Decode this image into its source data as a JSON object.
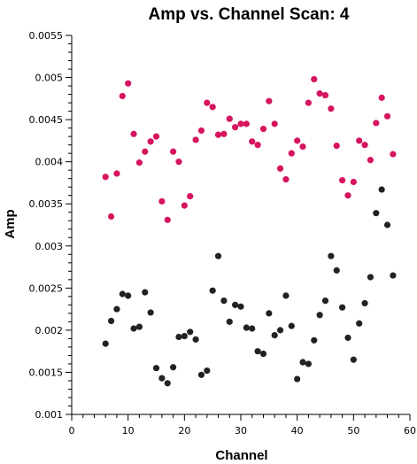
{
  "chart_data": {
    "type": "scatter",
    "title": "Amp vs. Channel Scan: 4",
    "xlabel": "Channel",
    "ylabel": "Amp",
    "xlim": [
      0,
      60
    ],
    "ylim": [
      0.001,
      0.0055
    ],
    "x_ticks": [
      "0",
      "10",
      "20",
      "30",
      "40",
      "50",
      "60"
    ],
    "y_ticks": [
      "0.001",
      "0.0015",
      "0.002",
      "0.0025",
      "0.003",
      "0.0035",
      "0.004",
      "0.0045",
      "0.005",
      "0.0055"
    ],
    "grid": false,
    "legend": "none",
    "series": [
      {
        "color": "#d6145f",
        "x": [
          6,
          7,
          8,
          9,
          10,
          11,
          12,
          13,
          14,
          15,
          16,
          17,
          18,
          19,
          20,
          21,
          22,
          23,
          24,
          25,
          26,
          27,
          28,
          29,
          30,
          31,
          32,
          33,
          34,
          35,
          36,
          37,
          38,
          39,
          40,
          41,
          42,
          43,
          44,
          45,
          46,
          47,
          48,
          49,
          50,
          51,
          52,
          53,
          54,
          55,
          56,
          57
        ],
        "y": [
          0.00382,
          0.00335,
          0.00386,
          0.00478,
          0.00493,
          0.00433,
          0.00399,
          0.00412,
          0.00424,
          0.0043,
          0.00353,
          0.00331,
          0.00412,
          0.004,
          0.00348,
          0.00359,
          0.00426,
          0.00437,
          0.0047,
          0.00465,
          0.00432,
          0.00433,
          0.00451,
          0.00441,
          0.00445,
          0.00445,
          0.00424,
          0.0042,
          0.00439,
          0.00472,
          0.00445,
          0.00392,
          0.00379,
          0.0041,
          0.00425,
          0.00418,
          0.0047,
          0.00498,
          0.00481,
          0.00479,
          0.00463,
          0.00419,
          0.00378,
          0.0036,
          0.00376,
          0.00425,
          0.0042,
          0.00402,
          0.00446,
          0.00476,
          0.00454,
          0.00409
        ]
      },
      {
        "color": "#222222",
        "x": [
          6,
          7,
          8,
          9,
          10,
          11,
          12,
          13,
          14,
          15,
          16,
          17,
          18,
          19,
          20,
          21,
          22,
          23,
          24,
          25,
          26,
          27,
          28,
          29,
          30,
          31,
          32,
          33,
          34,
          35,
          36,
          37,
          38,
          39,
          40,
          41,
          42,
          43,
          44,
          45,
          46,
          47,
          48,
          49,
          50,
          51,
          52,
          53,
          54,
          55,
          56,
          57
        ],
        "y": [
          0.00184,
          0.00211,
          0.00225,
          0.00243,
          0.00241,
          0.00202,
          0.00204,
          0.00245,
          0.00221,
          0.00155,
          0.00143,
          0.00137,
          0.00156,
          0.00192,
          0.00193,
          0.00198,
          0.00189,
          0.00147,
          0.00152,
          0.00247,
          0.00288,
          0.00235,
          0.0021,
          0.0023,
          0.00228,
          0.00203,
          0.00202,
          0.00175,
          0.00172,
          0.0022,
          0.00194,
          0.002,
          0.00241,
          0.00205,
          0.00142,
          0.00162,
          0.0016,
          0.00188,
          0.00218,
          0.00235,
          0.00288,
          0.00271,
          0.00227,
          0.00191,
          0.00165,
          0.00208,
          0.00232,
          0.00263,
          0.00339,
          0.00367,
          0.00325,
          0.00265
        ]
      }
    ]
  }
}
